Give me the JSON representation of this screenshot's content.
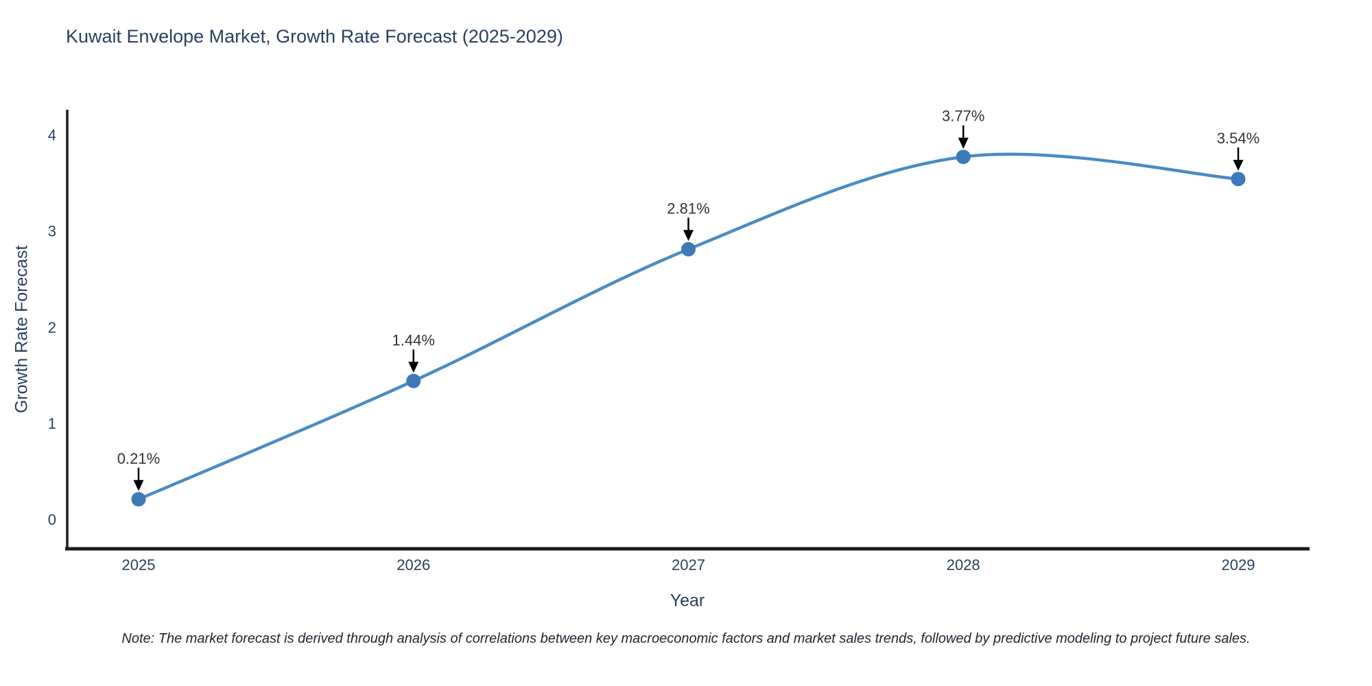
{
  "chart_data": {
    "type": "line",
    "title": "Kuwait Envelope Market, Growth Rate Forecast (2025-2029)",
    "xlabel": "Year",
    "ylabel": "Growth Rate Forecast",
    "categories": [
      "2025",
      "2026",
      "2027",
      "2028",
      "2029"
    ],
    "values": [
      0.21,
      1.44,
      2.81,
      3.77,
      3.54
    ],
    "point_labels": [
      "0.21%",
      "1.44%",
      "2.81%",
      "3.77%",
      "3.54%"
    ],
    "ytick_labels": [
      "0",
      "1",
      "2",
      "3",
      "4"
    ],
    "ytick_values": [
      0,
      1,
      2,
      3,
      4
    ],
    "ylim": [
      -0.305,
      4.26
    ],
    "line_shape": "spline",
    "grid": false,
    "legend_position": "none",
    "annotations_have_arrows": true,
    "colors": {
      "line": "#4a8bc2",
      "marker": "#3d7ab8",
      "axis_spine": "#1c1c1c",
      "tick_text": "#2a3f5f",
      "annotation_text": "#333333",
      "arrow": "#000000",
      "background": "#ffffff"
    }
  },
  "note": {
    "text": "Note: The market forecast is derived through analysis of correlations between key macroeconomic factors and market sales trends, followed by predictive modeling to project future sales."
  }
}
